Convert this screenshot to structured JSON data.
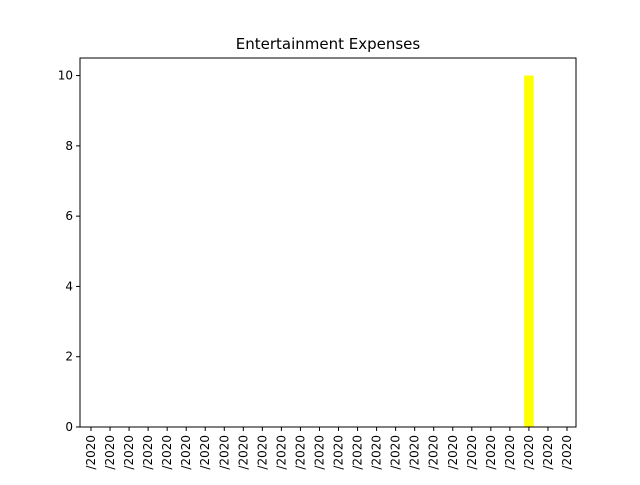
{
  "chart_data": {
    "type": "bar",
    "title": "Entertainment Expenses",
    "xlabel": "",
    "ylabel": "",
    "ylim": [
      0,
      10.5
    ],
    "yticks": [
      0,
      2,
      4,
      6,
      8,
      10
    ],
    "grid": false,
    "bar_color": "#ffff00",
    "categories": [
      "/2020",
      "/2020",
      "/2020",
      "/2020",
      "/2020",
      "/2020",
      "/2020",
      "/2020",
      "/2020",
      "/2020",
      "/2020",
      "/2020",
      "/2020",
      "/2020",
      "/2020",
      "/2020",
      "/2020",
      "/2020",
      "/2020",
      "/2020",
      "/2020",
      "/2020",
      "/2020",
      "/2020",
      "/2020",
      "/2020"
    ],
    "values": [
      0,
      0,
      0,
      0,
      0,
      0,
      0,
      0,
      0,
      0,
      0,
      0,
      0,
      0,
      0,
      0,
      0,
      0,
      0,
      0,
      0,
      0,
      0,
      10,
      0,
      0
    ]
  }
}
